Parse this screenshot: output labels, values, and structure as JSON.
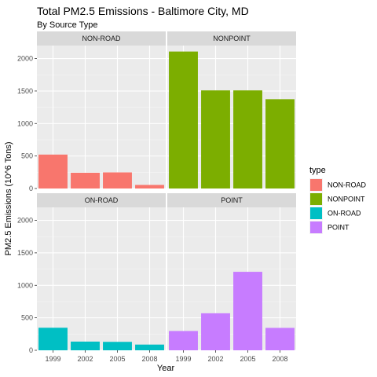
{
  "chart_data": {
    "type": "bar",
    "title": "Total PM2.5 Emissions - Baltimore City, MD",
    "subtitle": "By Source Type",
    "xlabel": "Year",
    "ylabel": "PM2.5 Emissions (10^6 Tons)",
    "categories": [
      "1999",
      "2002",
      "2005",
      "2008"
    ],
    "ylim": [
      0,
      2200
    ],
    "yticks": [
      0,
      500,
      1000,
      1500,
      2000
    ],
    "grid": true,
    "legend_title": "type",
    "legend_position": "right",
    "facets": [
      {
        "name": "NON-ROAD",
        "color": "#F8766D",
        "values": [
          522,
          242,
          248,
          55
        ]
      },
      {
        "name": "NONPOINT",
        "color": "#7CAE00",
        "values": [
          2108,
          1510,
          1510,
          1374
        ]
      },
      {
        "name": "ON-ROAD",
        "color": "#00BFC4",
        "values": [
          347,
          134,
          130,
          88
        ]
      },
      {
        "name": "POINT",
        "color": "#C77CFF",
        "values": [
          297,
          570,
          1208,
          345
        ]
      }
    ]
  }
}
